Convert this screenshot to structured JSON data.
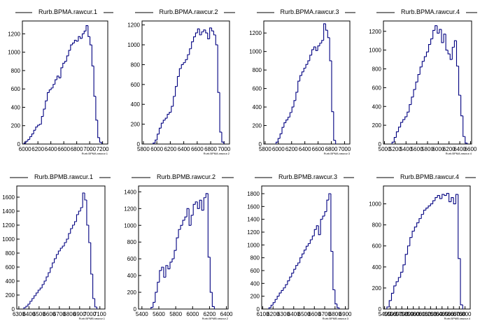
{
  "chart_data": [
    {
      "type": "histogram",
      "title": "Rurb.BPMA.rawcur.1",
      "xlabel": "Rurb.BPMA.rawcur.1",
      "xlim": [
        5960,
        7280
      ],
      "ylim": [
        0,
        1340
      ],
      "x_ticks": [
        "6000",
        "6200",
        "6400",
        "6600",
        "6800",
        "7000",
        "7200"
      ],
      "y_ticks": [
        "0",
        "200",
        "400",
        "600",
        "800",
        "1000",
        "1200"
      ],
      "x": [
        6000,
        6030,
        6060,
        6090,
        6120,
        6150,
        6180,
        6210,
        6240,
        6270,
        6300,
        6330,
        6360,
        6390,
        6420,
        6450,
        6480,
        6510,
        6540,
        6570,
        6600,
        6630,
        6660,
        6690,
        6720,
        6750,
        6780,
        6810,
        6840,
        6870,
        6900,
        6930,
        6960,
        6990,
        7020,
        7050,
        7080,
        7110,
        7140,
        7170
      ],
      "values": [
        10,
        30,
        50,
        80,
        110,
        150,
        185,
        205,
        215,
        300,
        380,
        470,
        560,
        590,
        610,
        650,
        700,
        740,
        720,
        830,
        880,
        900,
        960,
        1020,
        1080,
        1100,
        1130,
        1120,
        1170,
        1150,
        1200,
        1230,
        1290,
        1170,
        1080,
        850,
        520,
        260,
        70,
        20
      ]
    },
    {
      "type": "histogram",
      "title": "Rurb.BPMA.rawcur.2",
      "xlabel": "Rurb.BPMA.rawcur.2",
      "xlim": [
        5780,
        7080
      ],
      "ylim": [
        0,
        1240
      ],
      "x_ticks": [
        "5800",
        "6000",
        "6200",
        "6400",
        "6600",
        "6800",
        "7000"
      ],
      "y_ticks": [
        "0",
        "200",
        "400",
        "600",
        "800",
        "1000",
        "1200"
      ],
      "x": [
        5960,
        5990,
        6020,
        6050,
        6080,
        6110,
        6140,
        6170,
        6200,
        6230,
        6260,
        6290,
        6320,
        6350,
        6380,
        6410,
        6440,
        6470,
        6500,
        6530,
        6560,
        6590,
        6620,
        6650,
        6680,
        6710,
        6740,
        6770,
        6800,
        6830,
        6860,
        6890,
        6920,
        6950,
        6980
      ],
      "values": [
        10,
        40,
        100,
        160,
        210,
        240,
        260,
        300,
        320,
        380,
        480,
        580,
        680,
        760,
        800,
        820,
        850,
        900,
        960,
        1030,
        1080,
        1120,
        1160,
        1100,
        1130,
        1150,
        1120,
        1060,
        1170,
        1140,
        1100,
        1000,
        520,
        120,
        20
      ]
    },
    {
      "type": "histogram",
      "title": "Rurb.BPMA.rawcur.3",
      "xlabel": "Rurb.BPMA.rawcur.3",
      "xlim": [
        5780,
        7080
      ],
      "ylim": [
        0,
        1330
      ],
      "x_ticks": [
        "5800",
        "6000",
        "6200",
        "6400",
        "6600",
        "6800",
        "7000"
      ],
      "y_ticks": [
        "0",
        "200",
        "400",
        "600",
        "800",
        "1000",
        "1200"
      ],
      "x": [
        5980,
        6010,
        6040,
        6070,
        6100,
        6130,
        6160,
        6190,
        6220,
        6250,
        6280,
        6310,
        6340,
        6370,
        6400,
        6430,
        6460,
        6490,
        6520,
        6550,
        6580,
        6610,
        6640,
        6670,
        6700,
        6730,
        6760,
        6790,
        6820,
        6850
      ],
      "values": [
        20,
        60,
        110,
        180,
        230,
        260,
        290,
        340,
        400,
        470,
        560,
        680,
        740,
        780,
        820,
        860,
        900,
        960,
        1020,
        1050,
        1010,
        1060,
        1090,
        1120,
        1300,
        1230,
        1150,
        900,
        350,
        40
      ]
    },
    {
      "type": "histogram",
      "title": "Rurb.BPMA.rawcur.4",
      "xlabel": "Rurb.BPMA.rawcur.4",
      "xlim": [
        4980,
        6620
      ],
      "ylim": [
        0,
        1310
      ],
      "x_ticks": [
        "5000",
        "5200",
        "5400",
        "5600",
        "5800",
        "6000",
        "6200",
        "6400",
        "6600"
      ],
      "y_ticks": [
        "0",
        "200",
        "400",
        "600",
        "800",
        "1000",
        "1200"
      ],
      "x": [
        5160,
        5200,
        5240,
        5280,
        5320,
        5360,
        5400,
        5440,
        5480,
        5520,
        5560,
        5600,
        5640,
        5680,
        5720,
        5760,
        5800,
        5840,
        5880,
        5920,
        5960,
        6000,
        6040,
        6080,
        6120,
        6160,
        6200,
        6240,
        6280,
        6320,
        6360,
        6400,
        6440,
        6480,
        6520
      ],
      "values": [
        20,
        70,
        130,
        180,
        230,
        260,
        290,
        340,
        420,
        500,
        580,
        660,
        740,
        820,
        880,
        930,
        980,
        1060,
        1120,
        1210,
        1260,
        1180,
        1220,
        1080,
        1170,
        1000,
        960,
        900,
        1030,
        1100,
        830,
        520,
        300,
        80,
        10
      ]
    },
    {
      "type": "histogram",
      "title": "Rurb.BPMB.rawcur.1",
      "xlabel": "Rurb.BPMB.rawcur.1",
      "xlim": [
        6280,
        7150
      ],
      "ylim": [
        0,
        1760
      ],
      "x_ticks": [
        "6300",
        "6400",
        "6500",
        "6600",
        "6700",
        "6800",
        "6900",
        "7000",
        "7100"
      ],
      "y_ticks": [
        "0",
        "200",
        "400",
        "600",
        "800",
        "1000",
        "1200",
        "1400",
        "1600"
      ],
      "x": [
        6360,
        6380,
        6400,
        6420,
        6440,
        6460,
        6480,
        6500,
        6520,
        6540,
        6560,
        6580,
        6600,
        6620,
        6640,
        6660,
        6680,
        6700,
        6720,
        6740,
        6760,
        6780,
        6800,
        6820,
        6840,
        6860,
        6880,
        6900,
        6920,
        6940,
        6960,
        6980,
        7000,
        7020,
        7040,
        7060
      ],
      "values": [
        20,
        40,
        70,
        110,
        150,
        190,
        230,
        270,
        300,
        350,
        400,
        460,
        520,
        590,
        660,
        720,
        780,
        830,
        870,
        900,
        950,
        1000,
        1080,
        1150,
        1200,
        1250,
        1350,
        1400,
        1450,
        1660,
        1560,
        1200,
        950,
        500,
        150,
        30
      ]
    },
    {
      "type": "histogram",
      "title": "Rurb.BPMB.rawcur.2",
      "xlabel": "Rurb.BPMB.rawcur.2",
      "xlim": [
        5360,
        6420
      ],
      "ylim": [
        0,
        1470
      ],
      "x_ticks": [
        "5400",
        "5600",
        "5800",
        "6000",
        "6200",
        "6400"
      ],
      "y_ticks": [
        "0",
        "200",
        "400",
        "600",
        "800",
        "1000",
        "1200",
        "1400"
      ],
      "x": [
        5520,
        5545,
        5570,
        5595,
        5620,
        5645,
        5670,
        5695,
        5720,
        5745,
        5770,
        5795,
        5820,
        5845,
        5870,
        5895,
        5920,
        5945,
        5970,
        5995,
        6020,
        6045,
        6070,
        6095,
        6120,
        6145,
        6170,
        6195,
        6220,
        6245
      ],
      "values": [
        20,
        80,
        200,
        320,
        460,
        500,
        380,
        520,
        480,
        560,
        600,
        700,
        850,
        950,
        1000,
        1060,
        1100,
        1200,
        1000,
        1120,
        1250,
        1280,
        1200,
        1300,
        1180,
        1330,
        1380,
        620,
        200,
        30
      ]
    },
    {
      "type": "histogram",
      "title": "Rurb.BPMB.rawcur.3",
      "xlabel": "Rurb.BPMB.rawcur.3",
      "xlim": [
        6090,
        6930
      ],
      "ylim": [
        0,
        1920
      ],
      "x_ticks": [
        "6100",
        "6200",
        "6300",
        "6400",
        "6500",
        "6600",
        "6700",
        "6800",
        "6900"
      ],
      "y_ticks": [
        "0",
        "200",
        "400",
        "600",
        "800",
        "1000",
        "1200",
        "1400",
        "1600",
        "1800"
      ],
      "x": [
        6170,
        6190,
        6210,
        6230,
        6250,
        6270,
        6290,
        6310,
        6330,
        6350,
        6370,
        6390,
        6410,
        6430,
        6450,
        6470,
        6490,
        6510,
        6530,
        6550,
        6570,
        6590,
        6610,
        6630,
        6650,
        6670,
        6690,
        6710,
        6730,
        6750,
        6770,
        6790,
        6810,
        6830
      ],
      "values": [
        20,
        60,
        100,
        150,
        200,
        250,
        290,
        330,
        380,
        440,
        500,
        560,
        620,
        680,
        720,
        800,
        860,
        920,
        980,
        1020,
        1080,
        1140,
        1240,
        1300,
        1160,
        1400,
        1450,
        1520,
        1700,
        1800,
        900,
        300,
        80,
        20
      ]
    },
    {
      "type": "histogram",
      "title": "Rurb.BPMB.rawcur.4",
      "xlabel": "Rurb.BPMB.rawcur.4",
      "xlim": [
        5380,
        6890
      ],
      "ylim": [
        0,
        1170
      ],
      "x_ticks": [
        "5400",
        "5500",
        "5600",
        "5700",
        "5800",
        "5900",
        "6000",
        "6100",
        "6200",
        "6300",
        "6400",
        "6500",
        "6600",
        "6700",
        "6800"
      ],
      "y_ticks": [
        "0",
        "200",
        "400",
        "600",
        "800",
        "1000"
      ],
      "x": [
        5460,
        5500,
        5540,
        5580,
        5620,
        5660,
        5700,
        5740,
        5780,
        5820,
        5860,
        5900,
        5940,
        5980,
        6020,
        6060,
        6100,
        6140,
        6180,
        6220,
        6260,
        6300,
        6340,
        6380,
        6420,
        6460,
        6500,
        6540,
        6580,
        6620,
        6660,
        6700,
        6740
      ],
      "values": [
        20,
        80,
        150,
        220,
        260,
        300,
        350,
        420,
        520,
        600,
        680,
        740,
        780,
        820,
        860,
        900,
        940,
        960,
        980,
        1000,
        1030,
        1060,
        1080,
        1050,
        1090,
        1080,
        1100,
        1020,
        1060,
        1000,
        1090,
        480,
        40
      ]
    }
  ],
  "colors": {
    "series": "#000080",
    "axis": "#000000",
    "background": "#ffffff"
  }
}
